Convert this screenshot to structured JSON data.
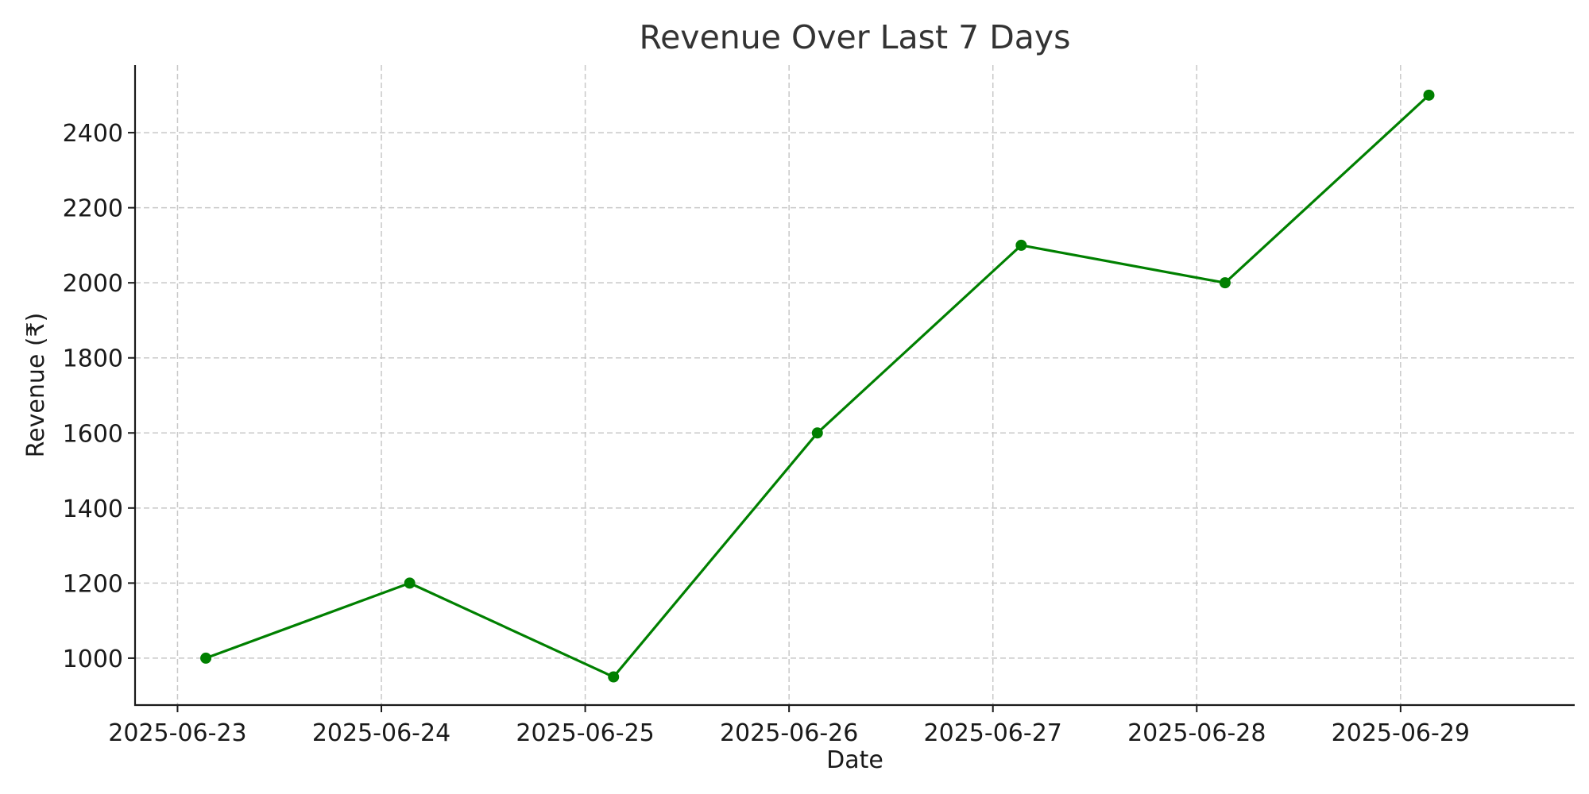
{
  "chart_data": {
    "type": "line",
    "title": "Revenue Over Last 7 Days",
    "xlabel": "Date",
    "ylabel": "Revenue (₹)",
    "x_ticks": [
      "2025-06-23",
      "2025-06-24",
      "2025-06-25",
      "2025-06-26",
      "2025-06-27",
      "2025-06-28",
      "2025-06-29"
    ],
    "y_ticks": [
      1000,
      1200,
      1400,
      1600,
      1800,
      2000,
      2200,
      2400
    ],
    "ylim": [
      875,
      2580
    ],
    "xlim": [
      "2025-06-22T19:00",
      "2025-06-29T20:30"
    ],
    "grid": true,
    "series": [
      {
        "color": "#008000",
        "marker": "circle",
        "points": [
          {
            "x": "2025-06-23T03:20",
            "y": 1000
          },
          {
            "x": "2025-06-24T03:20",
            "y": 1200
          },
          {
            "x": "2025-06-25T03:20",
            "y": 950
          },
          {
            "x": "2025-06-26T03:20",
            "y": 1600
          },
          {
            "x": "2025-06-27T03:20",
            "y": 2100
          },
          {
            "x": "2025-06-28T03:20",
            "y": 2000
          },
          {
            "x": "2025-06-29T03:20",
            "y": 2500
          }
        ]
      }
    ]
  }
}
